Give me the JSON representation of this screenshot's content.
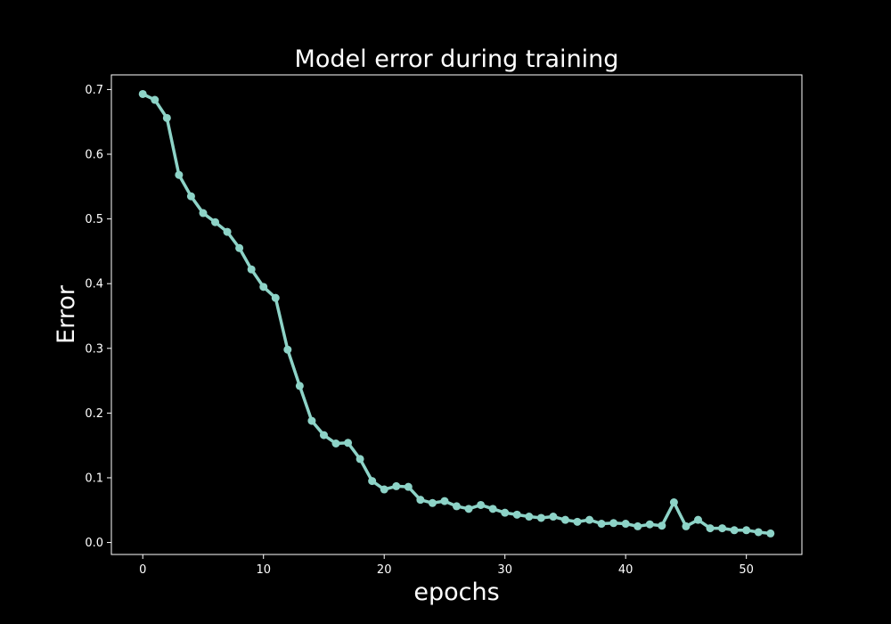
{
  "chart_data": {
    "type": "line",
    "title": "Model error during training",
    "xlabel": "epochs",
    "ylabel": "Error",
    "xlim": [
      -2.6,
      54.6
    ],
    "ylim": [
      -0.0185,
      0.7226
    ],
    "grid": false,
    "x_ticks": [
      0,
      10,
      20,
      30,
      40,
      50
    ],
    "y_ticks": [
      0.0,
      0.1,
      0.2,
      0.3,
      0.4,
      0.5,
      0.6,
      0.7
    ],
    "x_tick_labels": [
      "0",
      "10",
      "20",
      "30",
      "40",
      "50"
    ],
    "y_tick_labels": [
      "0.0",
      "0.1",
      "0.2",
      "0.3",
      "0.4",
      "0.5",
      "0.6",
      "0.7"
    ],
    "colors": {
      "background": "#000000",
      "axes": "#ffffff",
      "text": "#ffffff",
      "series": "#8dd3c7"
    },
    "series": [
      {
        "x": [
          0,
          1,
          2,
          3,
          4,
          5,
          6,
          7,
          8,
          9,
          10,
          11,
          12,
          13,
          14,
          15,
          16,
          17,
          18,
          19,
          20,
          21,
          22,
          23,
          24,
          25,
          26,
          27,
          28,
          29,
          30,
          31,
          32,
          33,
          34,
          35,
          36,
          37,
          38,
          39,
          40,
          41,
          42,
          43,
          44,
          45,
          46,
          47,
          48,
          49,
          50,
          51,
          52
        ],
        "values": [
          0.693,
          0.684,
          0.656,
          0.568,
          0.535,
          0.509,
          0.495,
          0.48,
          0.455,
          0.422,
          0.395,
          0.378,
          0.298,
          0.242,
          0.188,
          0.166,
          0.153,
          0.154,
          0.129,
          0.095,
          0.082,
          0.087,
          0.086,
          0.066,
          0.061,
          0.064,
          0.056,
          0.052,
          0.058,
          0.052,
          0.046,
          0.043,
          0.04,
          0.038,
          0.04,
          0.035,
          0.032,
          0.035,
          0.029,
          0.03,
          0.029,
          0.025,
          0.028,
          0.026,
          0.062,
          0.025,
          0.035,
          0.022,
          0.022,
          0.019,
          0.019,
          0.016,
          0.014
        ]
      }
    ]
  }
}
